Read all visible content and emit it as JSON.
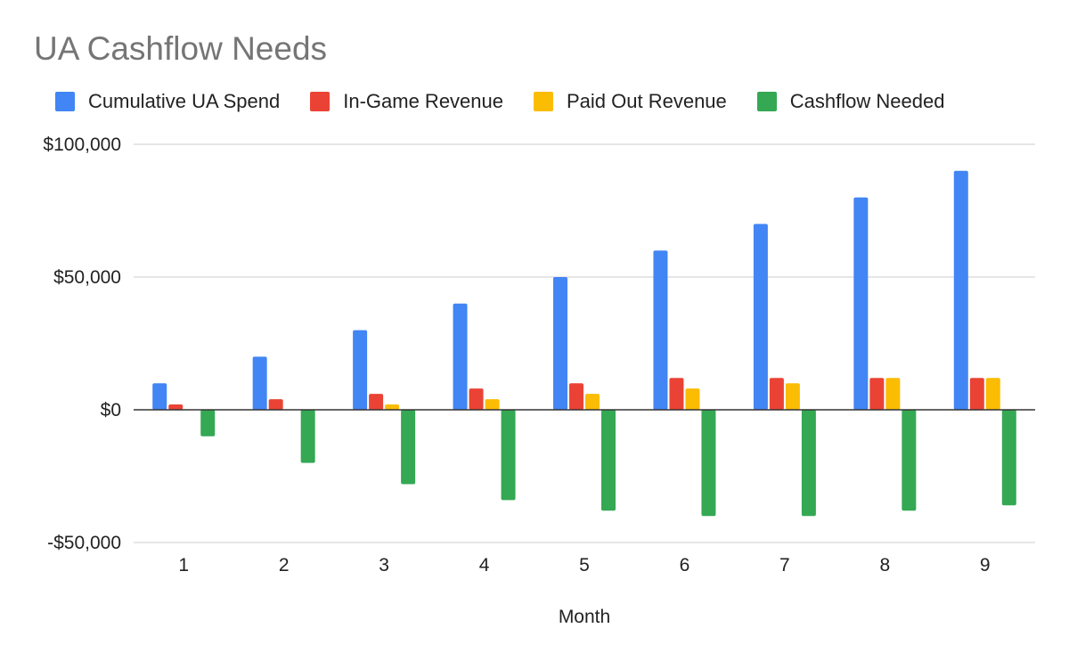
{
  "chart_data": {
    "type": "bar",
    "title": "UA Cashflow Needs",
    "xlabel": "Month",
    "ylabel": "",
    "categories": [
      "1",
      "2",
      "3",
      "4",
      "5",
      "6",
      "7",
      "8",
      "9"
    ],
    "ylim": [
      -50000,
      100000
    ],
    "yticks": [
      {
        "value": 100000,
        "label": "$100,000"
      },
      {
        "value": 50000,
        "label": "$50,000"
      },
      {
        "value": 0,
        "label": "$0"
      },
      {
        "value": -50000,
        "label": "-$50,000"
      }
    ],
    "grid": true,
    "legend_position": "top",
    "series": [
      {
        "name": "Cumulative UA Spend",
        "color": "#4285F4",
        "values": [
          10000,
          20000,
          30000,
          40000,
          50000,
          60000,
          70000,
          80000,
          90000
        ]
      },
      {
        "name": "In-Game Revenue",
        "color": "#EA4335",
        "values": [
          2000,
          4000,
          6000,
          8000,
          10000,
          12000,
          12000,
          12000,
          12000
        ]
      },
      {
        "name": "Paid Out Revenue",
        "color": "#FBBC04",
        "values": [
          0,
          0,
          2000,
          4000,
          6000,
          8000,
          10000,
          12000,
          12000
        ]
      },
      {
        "name": "Cashflow Needed",
        "color": "#34A853",
        "values": [
          -10000,
          -20000,
          -28000,
          -34000,
          -38000,
          -40000,
          -40000,
          -38000,
          -36000
        ]
      }
    ]
  }
}
